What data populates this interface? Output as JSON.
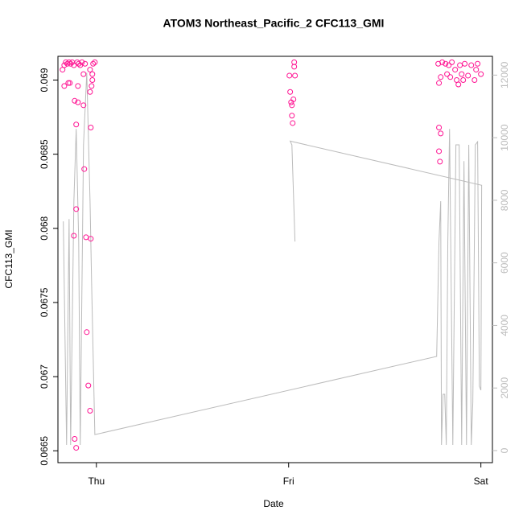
{
  "chart_data": {
    "type": "scatter",
    "title": "ATOM3 Northeast_Pacific_2 CFC113_GMI",
    "x_label": "Date",
    "y_label": "CFC113_GMI",
    "xlim": [
      -0.2,
      2.06
    ],
    "xticks": [
      {
        "value": 0,
        "label": "Thu"
      },
      {
        "value": 1,
        "label": "Fri"
      },
      {
        "value": 2,
        "label": "Sat"
      }
    ],
    "ylim": [
      0.06642,
      0.06916
    ],
    "yticks": [
      0.0665,
      0.067,
      0.0675,
      0.068,
      0.0685,
      0.069
    ],
    "y2lim": [
      -386,
      12600
    ],
    "y2ticks": [
      0,
      2000,
      4000,
      6000,
      8000,
      10000,
      12000
    ],
    "points": {
      "color": "#ff1493",
      "x": [
        -0.176,
        -0.167,
        -0.159,
        -0.151,
        -0.142,
        -0.134,
        -0.126,
        -0.117,
        -0.1,
        -0.092,
        -0.084,
        -0.075,
        -0.067,
        -0.059,
        -0.017,
        -0.008,
        -0.167,
        -0.146,
        -0.138,
        -0.113,
        -0.096,
        -0.067,
        -0.033,
        -0.105,
        -0.029,
        -0.063,
        -0.105,
        -0.117,
        -0.054,
        -0.029,
        -0.05,
        -0.042,
        -0.033,
        -0.113,
        -0.105,
        -0.096,
        -0.025,
        -0.021,
        -0.021,
        -0.033,
        1.029,
        1.029,
        1.004,
        1.033,
        1.008,
        1.013,
        1.025,
        1.017,
        1.017,
        1.021,
        1.782,
        1.791,
        1.782,
        1.787,
        1.782,
        1.791,
        1.778,
        1.799,
        1.816,
        1.833,
        1.849,
        1.866,
        1.874,
        1.883,
        1.9,
        1.916,
        1.933,
        1.95,
        1.967,
        1.983,
        2.0,
        1.841,
        1.908,
        1.975,
        1.824,
        1.891
      ],
      "values": [
        0.06907,
        0.0691,
        0.06912,
        0.06911,
        0.06912,
        0.06911,
        0.06912,
        0.0691,
        0.06912,
        0.06911,
        0.0691,
        0.06912,
        0.06904,
        0.06911,
        0.06911,
        0.06912,
        0.06896,
        0.06898,
        0.06898,
        0.06886,
        0.06885,
        0.06883,
        0.06892,
        0.0687,
        0.06868,
        0.0684,
        0.06813,
        0.06795,
        0.06794,
        0.06793,
        0.0673,
        0.06694,
        0.06677,
        0.06658,
        0.06652,
        0.06896,
        0.06896,
        0.069,
        0.06904,
        0.06907,
        0.06912,
        0.06909,
        0.06903,
        0.06903,
        0.06892,
        0.06885,
        0.06887,
        0.06883,
        0.06876,
        0.06871,
        0.06868,
        0.06864,
        0.06852,
        0.06845,
        0.06898,
        0.06902,
        0.06911,
        0.06912,
        0.06911,
        0.0691,
        0.06912,
        0.06907,
        0.069,
        0.06897,
        0.06904,
        0.06911,
        0.06903,
        0.0691,
        0.069,
        0.06911,
        0.06904,
        0.06902,
        0.069,
        0.06907,
        0.06904,
        0.0691
      ]
    },
    "line": {
      "color": "#bbbbbb",
      "axis": "y2",
      "x": [
        -0.172,
        -0.155,
        -0.142,
        -0.134,
        -0.117,
        -0.105,
        -0.092,
        -0.084,
        -0.067,
        -0.05,
        -0.033,
        -0.025,
        -0.008,
        1.77,
        1.782,
        1.791,
        1.795,
        1.803,
        1.812,
        1.82,
        1.828,
        1.837,
        1.854,
        1.87,
        1.887,
        1.9,
        1.912,
        1.925,
        1.937,
        1.95,
        1.958,
        1.971,
        1.983,
        1.992,
        2.0,
        2.004,
        1.008,
        1.017,
        1.033
      ],
      "values": [
        7325,
        180,
        7400,
        180,
        7970,
        10280,
        6680,
        180,
        9770,
        12080,
        7970,
        5400,
        510,
        3010,
        6680,
        7970,
        180,
        1800,
        1800,
        180,
        6680,
        10280,
        180,
        9770,
        9770,
        180,
        9250,
        180,
        9770,
        180,
        1540,
        9770,
        9870,
        2060,
        1930,
        8480,
        9890,
        9770,
        6680
      ]
    }
  }
}
